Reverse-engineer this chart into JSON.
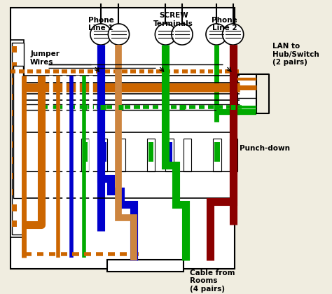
{
  "bg_color": "#f0ede0",
  "colors": {
    "blue": "#0000cc",
    "orange": "#cc6600",
    "green": "#00aa00",
    "dark_red": "#8b0000",
    "white": "#ffffff",
    "black": "#000000",
    "gray": "#888888",
    "light_gray": "#cccccc",
    "tan": "#cd853f"
  },
  "labels": {
    "phone1": "Phone\nLine 1",
    "phone2": "Phone\nLine 2",
    "screw": "SCREW\nTerminals",
    "jumper": "Jumper\nWires",
    "lan": "LAN to\nHub/Switch\n(2 pairs)",
    "punchdown": "Punch-down",
    "cable": "Cable from\nRooms\n(4 pairs)"
  }
}
